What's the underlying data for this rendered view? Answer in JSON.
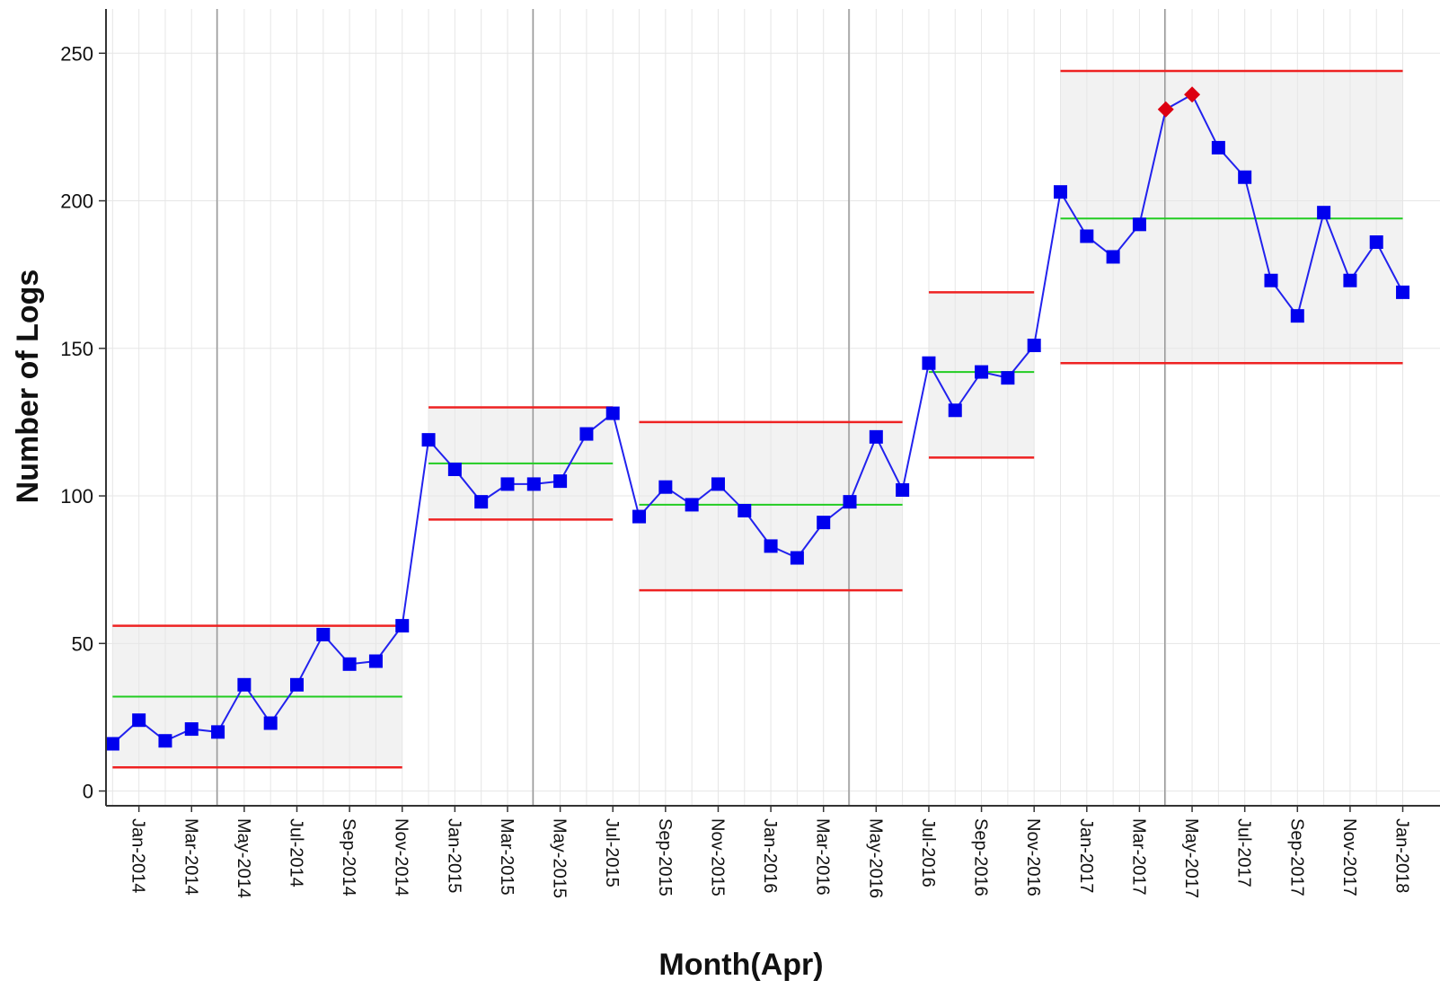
{
  "chart_data": {
    "type": "line",
    "title": "",
    "xlabel": "Month(Apr)",
    "ylabel": "Number of Logs",
    "ylim": [
      -5,
      265
    ],
    "yticks": [
      0,
      50,
      100,
      150,
      200,
      250
    ],
    "grid": true,
    "x_tick_labels": [
      "Jan-2014",
      "Mar-2014",
      "May-2014",
      "Jul-2014",
      "Sep-2014",
      "Nov-2014",
      "Jan-2015",
      "Mar-2015",
      "May-2015",
      "Jul-2015",
      "Sep-2015",
      "Nov-2015",
      "Jan-2016",
      "Mar-2016",
      "May-2016",
      "Jul-2016",
      "Sep-2016",
      "Nov-2016",
      "Jan-2017",
      "Mar-2017",
      "May-2017",
      "Jul-2017",
      "Sep-2017",
      "Nov-2017",
      "Jan-2018"
    ],
    "phase_dividers": [
      "Apr-2014",
      "Apr-2015",
      "Apr-2016",
      "Apr-2017"
    ],
    "series": [
      {
        "color": "#0000ee",
        "x": [
          "Dec-2013",
          "Jan-2014",
          "Feb-2014",
          "Mar-2014",
          "Apr-2014",
          "May-2014",
          "Jun-2014",
          "Jul-2014",
          "Aug-2014",
          "Sep-2014",
          "Oct-2014",
          "Nov-2014",
          "Dec-2014",
          "Jan-2015",
          "Feb-2015",
          "Mar-2015",
          "Apr-2015",
          "May-2015",
          "Jun-2015",
          "Jul-2015",
          "Aug-2015",
          "Sep-2015",
          "Oct-2015",
          "Nov-2015",
          "Dec-2015",
          "Jan-2016",
          "Feb-2016",
          "Mar-2016",
          "Apr-2016",
          "May-2016",
          "Jun-2016",
          "Jul-2016",
          "Aug-2016",
          "Sep-2016",
          "Oct-2016",
          "Nov-2016",
          "Dec-2016",
          "Jan-2017",
          "Feb-2017",
          "Mar-2017",
          "Apr-2017",
          "May-2017",
          "Jun-2017",
          "Jul-2017",
          "Aug-2017",
          "Sep-2017",
          "Oct-2017",
          "Nov-2017",
          "Dec-2017",
          "Jan-2018"
        ],
        "y": [
          16,
          24,
          17,
          21,
          20,
          36,
          23,
          36,
          53,
          43,
          44,
          56,
          119,
          109,
          98,
          104,
          104,
          105,
          121,
          128,
          93,
          103,
          97,
          104,
          95,
          83,
          79,
          91,
          98,
          120,
          102,
          145,
          129,
          142,
          140,
          151,
          203,
          188,
          181,
          192,
          231,
          236,
          218,
          208,
          173,
          161,
          196,
          173,
          186,
          169
        ]
      }
    ],
    "highlighted_points": {
      "x": [
        "Apr-2017",
        "May-2017"
      ],
      "y": [
        231,
        236
      ],
      "color": "#dd0011"
    },
    "phases": [
      {
        "x_start": "Dec-2013",
        "x_end": "Nov-2014",
        "center": 32,
        "ucl": 56,
        "lcl": 8
      },
      {
        "x_start": "Dec-2014",
        "x_end": "Jul-2015",
        "center": 111,
        "ucl": 130,
        "lcl": 92
      },
      {
        "x_start": "Aug-2015",
        "x_end": "Jun-2016",
        "center": 97,
        "ucl": 125,
        "lcl": 68
      },
      {
        "x_start": "Jul-2016",
        "x_end": "Nov-2016",
        "center": 142,
        "ucl": 169,
        "lcl": 113
      },
      {
        "x_start": "Dec-2016",
        "x_end": "Jan-2018",
        "center": 194,
        "ucl": 244,
        "lcl": 145
      }
    ],
    "colors": {
      "center_line": "#22cc22",
      "limit_line": "#ee2222",
      "band_fill": "#f2f2f2",
      "marker": "#0000ee",
      "line": "#2222ee"
    }
  }
}
